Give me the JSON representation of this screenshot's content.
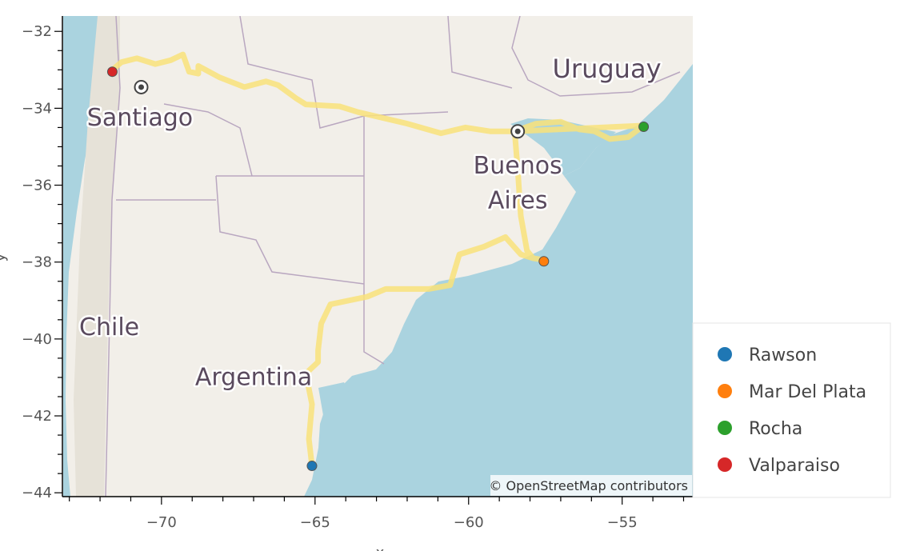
{
  "chart_data": {
    "type": "scatter",
    "xlabel": "x",
    "ylabel": "y",
    "xlim": [
      -73.2,
      -52.7
    ],
    "ylim": [
      -44.1,
      -31.6
    ],
    "x_ticks": [
      -70,
      -65,
      -60,
      -55
    ],
    "y_ticks": [
      -44,
      -42,
      -40,
      -38,
      -36,
      -34,
      -32
    ],
    "x_tick_labels": [
      "−70",
      "−65",
      "−60",
      "−55"
    ],
    "y_tick_labels": [
      "−44",
      "−42",
      "−40",
      "−38",
      "−36",
      "−34",
      "−32"
    ],
    "legend_position": "right",
    "background": "map tiles",
    "route_color": "#f9e27a",
    "route": [
      [
        -71.6,
        -33.0
      ],
      [
        -71.3,
        -32.8
      ],
      [
        -70.8,
        -32.7
      ],
      [
        -70.2,
        -32.85
      ],
      [
        -69.7,
        -32.75
      ],
      [
        -69.3,
        -32.6
      ],
      [
        -69.1,
        -33.05
      ],
      [
        -68.8,
        -33.1
      ],
      [
        -68.8,
        -32.9
      ],
      [
        -68.1,
        -33.2
      ],
      [
        -67.3,
        -33.45
      ],
      [
        -66.6,
        -33.3
      ],
      [
        -66.2,
        -33.4
      ],
      [
        -65.6,
        -33.75
      ],
      [
        -65.3,
        -33.9
      ],
      [
        -64.2,
        -33.95
      ],
      [
        -63.6,
        -34.1
      ],
      [
        -62.0,
        -34.4
      ],
      [
        -60.9,
        -34.65
      ],
      [
        -60.1,
        -34.5
      ],
      [
        -59.3,
        -34.6
      ],
      [
        -58.5,
        -34.6
      ],
      [
        -57.8,
        -34.4
      ],
      [
        -57.0,
        -34.35
      ],
      [
        -56.4,
        -34.55
      ],
      [
        -55.9,
        -34.6
      ],
      [
        -55.4,
        -34.8
      ],
      [
        -54.8,
        -34.75
      ],
      [
        -54.3,
        -34.45
      ],
      [
        -58.5,
        -34.6
      ],
      [
        -58.4,
        -35.6
      ],
      [
        -58.3,
        -36.8
      ],
      [
        -58.1,
        -37.7
      ],
      [
        -57.9,
        -37.9
      ],
      [
        -57.5,
        -37.95
      ],
      [
        -57.9,
        -37.9
      ],
      [
        -58.3,
        -37.8
      ],
      [
        -58.8,
        -37.35
      ],
      [
        -59.5,
        -37.6
      ],
      [
        -60.3,
        -37.8
      ],
      [
        -60.6,
        -38.6
      ],
      [
        -61.3,
        -38.7
      ],
      [
        -62.3,
        -38.7
      ],
      [
        -62.7,
        -38.7
      ],
      [
        -63.3,
        -38.9
      ],
      [
        -64.5,
        -39.1
      ],
      [
        -64.8,
        -39.6
      ],
      [
        -64.9,
        -40.3
      ],
      [
        -64.9,
        -40.6
      ],
      [
        -65.3,
        -40.9
      ],
      [
        -65.1,
        -41.7
      ],
      [
        -65.2,
        -42.6
      ],
      [
        -65.1,
        -43.3
      ]
    ],
    "series": [
      {
        "name": "Rawson",
        "color": "#1f77b4",
        "points": [
          [
            -65.1,
            -43.3
          ]
        ]
      },
      {
        "name": "Mar Del Plata",
        "color": "#ff7f0e",
        "points": [
          [
            -57.55,
            -37.98
          ]
        ]
      },
      {
        "name": "Rocha",
        "color": "#2ca02c",
        "points": [
          [
            -54.3,
            -34.48
          ]
        ]
      },
      {
        "name": "Valparaiso",
        "color": "#d62728",
        "points": [
          [
            -71.6,
            -33.05
          ]
        ]
      }
    ],
    "map_labels": [
      {
        "text": "Uruguay",
        "lon": -55.5,
        "lat": -33.2,
        "size": 32
      },
      {
        "text": "Santiago",
        "lon": -70.7,
        "lat": -34.45,
        "size": 30
      },
      {
        "text": "Buenos",
        "lon": -58.4,
        "lat": -35.7,
        "size": 30
      },
      {
        "text": "Aires",
        "lon": -58.4,
        "lat": -36.6,
        "size": 30
      },
      {
        "text": "Chile",
        "lon": -71.7,
        "lat": -39.9,
        "size": 30
      },
      {
        "text": "Argentina",
        "lon": -67.0,
        "lat": -41.2,
        "size": 30
      }
    ],
    "city_markers": [
      {
        "name": "Santiago",
        "lon": -70.66,
        "lat": -33.45
      },
      {
        "name": "Buenos Aires",
        "lon": -58.4,
        "lat": -34.6
      }
    ]
  },
  "attribution": "© OpenStreetMap contributors"
}
